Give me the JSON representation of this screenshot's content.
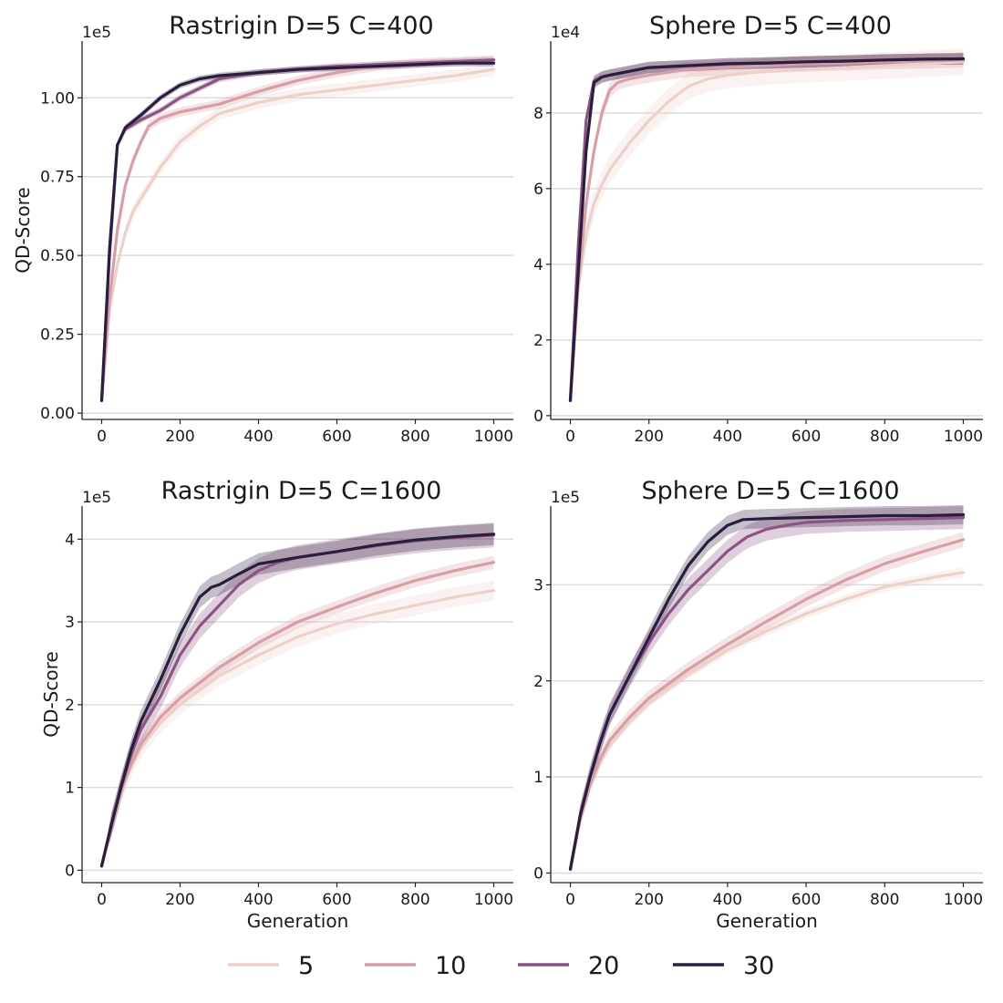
{
  "legend": {
    "entries": [
      {
        "label": "5",
        "color": "#ecd1c9"
      },
      {
        "label": "10",
        "color": "#d69ea7"
      },
      {
        "label": "20",
        "color": "#8c5482"
      },
      {
        "label": "30",
        "color": "#2a1d3d"
      }
    ]
  },
  "chart_data": [
    {
      "type": "line",
      "title": "Rastrigin D=5 C=400",
      "xlabel": "",
      "ylabel": "QD-Score",
      "offset_text": "1e5",
      "xlim": [
        -50,
        1050
      ],
      "ylim": [
        -0.02,
        1.18
      ],
      "xticks": [
        0,
        200,
        400,
        600,
        800,
        1000
      ],
      "xtick_labels": [
        "0",
        "200",
        "400",
        "600",
        "800",
        "1000"
      ],
      "yticks": [
        0,
        0.25,
        0.5,
        0.75,
        1.0
      ],
      "ytick_labels": [
        "0.00",
        "0.25",
        "0.50",
        "0.75",
        "1.00"
      ],
      "grid": "horizontal",
      "series": [
        {
          "name": "5",
          "band": 0.02,
          "x": [
            0,
            20,
            40,
            60,
            80,
            100,
            150,
            200,
            250,
            300,
            400,
            500,
            600,
            700,
            800,
            900,
            1000
          ],
          "y": [
            0.04,
            0.33,
            0.47,
            0.57,
            0.64,
            0.68,
            0.78,
            0.86,
            0.91,
            0.95,
            0.985,
            1.01,
            1.025,
            1.04,
            1.055,
            1.07,
            1.09
          ]
        },
        {
          "name": "10",
          "band": 0.015,
          "x": [
            0,
            20,
            40,
            60,
            80,
            100,
            120,
            150,
            200,
            300,
            400,
            500,
            600,
            700,
            800,
            900,
            1000
          ],
          "y": [
            0.04,
            0.36,
            0.58,
            0.72,
            0.8,
            0.86,
            0.91,
            0.935,
            0.955,
            0.98,
            1.02,
            1.055,
            1.08,
            1.1,
            1.11,
            1.115,
            1.12
          ]
        },
        {
          "name": "20",
          "band": 0.01,
          "x": [
            0,
            20,
            40,
            60,
            80,
            100,
            150,
            200,
            300,
            400,
            500,
            600,
            700,
            800,
            900,
            1000
          ],
          "y": [
            0.04,
            0.5,
            0.85,
            0.9,
            0.915,
            0.93,
            0.96,
            1.0,
            1.06,
            1.08,
            1.09,
            1.1,
            1.105,
            1.11,
            1.115,
            1.12
          ]
        },
        {
          "name": "30",
          "band": 0.01,
          "x": [
            0,
            20,
            40,
            60,
            80,
            100,
            150,
            200,
            250,
            300,
            400,
            500,
            600,
            700,
            800,
            900,
            1000
          ],
          "y": [
            0.04,
            0.52,
            0.85,
            0.905,
            0.925,
            0.945,
            1.0,
            1.04,
            1.06,
            1.07,
            1.08,
            1.09,
            1.095,
            1.1,
            1.105,
            1.11,
            1.11
          ]
        }
      ]
    },
    {
      "type": "line",
      "title": "Sphere D=5 C=400",
      "xlabel": "",
      "ylabel": "",
      "offset_text": "1e4",
      "xlim": [
        -50,
        1050
      ],
      "ylim": [
        -0.1,
        9.9
      ],
      "xticks": [
        0,
        200,
        400,
        600,
        800,
        1000
      ],
      "xtick_labels": [
        "0",
        "200",
        "400",
        "600",
        "800",
        "1000"
      ],
      "yticks": [
        0,
        2,
        4,
        6,
        8
      ],
      "ytick_labels": [
        "0",
        "2",
        "4",
        "6",
        "8"
      ],
      "grid": "horizontal",
      "series": [
        {
          "name": "5",
          "band": 0.35,
          "x": [
            0,
            20,
            40,
            60,
            80,
            100,
            150,
            200,
            250,
            300,
            350,
            400,
            500,
            600,
            700,
            800,
            900,
            1000
          ],
          "y": [
            0.4,
            3.4,
            4.8,
            5.6,
            6.1,
            6.5,
            7.2,
            7.8,
            8.3,
            8.7,
            8.9,
            9.0,
            9.1,
            9.15,
            9.2,
            9.25,
            9.3,
            9.35
          ]
        },
        {
          "name": "10",
          "band": 0.2,
          "x": [
            0,
            20,
            40,
            60,
            80,
            100,
            120,
            150,
            200,
            300,
            400,
            500,
            600,
            700,
            800,
            900,
            1000
          ],
          "y": [
            0.4,
            3.5,
            5.6,
            7.0,
            8.0,
            8.6,
            8.8,
            8.9,
            9.0,
            9.15,
            9.2,
            9.25,
            9.3,
            9.32,
            9.35,
            9.37,
            9.4
          ]
        },
        {
          "name": "20",
          "band": 0.15,
          "x": [
            0,
            20,
            40,
            60,
            80,
            100,
            150,
            200,
            300,
            400,
            500,
            600,
            700,
            800,
            900,
            1000
          ],
          "y": [
            0.4,
            4.5,
            7.8,
            8.85,
            8.95,
            9.0,
            9.1,
            9.2,
            9.25,
            9.3,
            9.32,
            9.35,
            9.37,
            9.4,
            9.42,
            9.43
          ]
        },
        {
          "name": "30",
          "band": 0.15,
          "x": [
            0,
            20,
            40,
            60,
            80,
            100,
            150,
            200,
            300,
            400,
            500,
            600,
            700,
            800,
            900,
            1000
          ],
          "y": [
            0.4,
            3.8,
            7.0,
            8.8,
            8.95,
            9.0,
            9.1,
            9.2,
            9.25,
            9.3,
            9.32,
            9.35,
            9.37,
            9.4,
            9.42,
            9.43
          ]
        }
      ]
    },
    {
      "type": "line",
      "title": "Rastrigin D=5 C=1600",
      "xlabel": "Generation",
      "ylabel": "QD-Score",
      "offset_text": "1e5",
      "xlim": [
        -50,
        1050
      ],
      "ylim": [
        -0.15,
        4.4
      ],
      "xticks": [
        0,
        200,
        400,
        600,
        800,
        1000
      ],
      "xtick_labels": [
        "0",
        "200",
        "400",
        "600",
        "800",
        "1000"
      ],
      "yticks": [
        0,
        1,
        2,
        3,
        4
      ],
      "ytick_labels": [
        "0",
        "1",
        "2",
        "3",
        "4"
      ],
      "grid": "horizontal",
      "series": [
        {
          "name": "5",
          "band": 0.12,
          "x": [
            0,
            25,
            50,
            75,
            100,
            150,
            200,
            300,
            400,
            500,
            600,
            700,
            800,
            900,
            1000
          ],
          "y": [
            0.05,
            0.55,
            0.95,
            1.25,
            1.48,
            1.78,
            2.0,
            2.35,
            2.6,
            2.82,
            2.98,
            3.1,
            3.2,
            3.3,
            3.38
          ]
        },
        {
          "name": "10",
          "band": 0.08,
          "x": [
            0,
            25,
            50,
            75,
            100,
            150,
            200,
            300,
            400,
            500,
            600,
            700,
            800,
            900,
            1000
          ],
          "y": [
            0.05,
            0.55,
            0.97,
            1.28,
            1.52,
            1.85,
            2.08,
            2.45,
            2.75,
            3.0,
            3.18,
            3.35,
            3.5,
            3.62,
            3.72
          ]
        },
        {
          "name": "20",
          "band": 0.15,
          "x": [
            0,
            25,
            50,
            75,
            100,
            150,
            200,
            250,
            300,
            350,
            400,
            450,
            500,
            600,
            700,
            800,
            900,
            1000
          ],
          "y": [
            0.05,
            0.55,
            1.0,
            1.4,
            1.7,
            2.1,
            2.6,
            2.95,
            3.2,
            3.45,
            3.62,
            3.72,
            3.78,
            3.85,
            3.92,
            3.98,
            4.02,
            4.05
          ]
        },
        {
          "name": "30",
          "band": 0.13,
          "x": [
            0,
            25,
            50,
            75,
            100,
            150,
            200,
            250,
            280,
            300,
            350,
            400,
            500,
            600,
            700,
            800,
            900,
            1000
          ],
          "y": [
            0.05,
            0.56,
            1.02,
            1.45,
            1.8,
            2.3,
            2.85,
            3.3,
            3.42,
            3.45,
            3.58,
            3.7,
            3.78,
            3.85,
            3.93,
            3.99,
            4.03,
            4.06
          ]
        }
      ]
    },
    {
      "type": "line",
      "title": "Sphere D=5 C=1600",
      "xlabel": "Generation",
      "ylabel": "",
      "offset_text": "1e5",
      "xlim": [
        -50,
        1050
      ],
      "ylim": [
        -0.1,
        3.82
      ],
      "xticks": [
        0,
        200,
        400,
        600,
        800,
        1000
      ],
      "xtick_labels": [
        "0",
        "200",
        "400",
        "600",
        "800",
        "1000"
      ],
      "yticks": [
        0,
        1,
        2,
        3
      ],
      "ytick_labels": [
        "0",
        "1",
        "2",
        "3"
      ],
      "grid": "horizontal",
      "series": [
        {
          "name": "5",
          "band": 0.05,
          "x": [
            0,
            25,
            50,
            75,
            100,
            150,
            200,
            300,
            400,
            500,
            600,
            700,
            800,
            900,
            1000
          ],
          "y": [
            0.04,
            0.55,
            0.9,
            1.15,
            1.33,
            1.58,
            1.78,
            2.08,
            2.32,
            2.52,
            2.7,
            2.85,
            2.98,
            3.06,
            3.13
          ]
        },
        {
          "name": "10",
          "band": 0.08,
          "x": [
            0,
            25,
            50,
            75,
            100,
            150,
            200,
            300,
            400,
            500,
            600,
            700,
            800,
            900,
            1000
          ],
          "y": [
            0.04,
            0.56,
            0.92,
            1.18,
            1.38,
            1.62,
            1.82,
            2.12,
            2.38,
            2.62,
            2.85,
            3.05,
            3.22,
            3.35,
            3.47
          ]
        },
        {
          "name": "20",
          "band": 0.12,
          "x": [
            0,
            25,
            50,
            75,
            100,
            150,
            200,
            250,
            300,
            350,
            400,
            450,
            500,
            550,
            600,
            700,
            800,
            900,
            1000
          ],
          "y": [
            0.04,
            0.6,
            1.0,
            1.35,
            1.65,
            2.05,
            2.4,
            2.7,
            2.95,
            3.15,
            3.35,
            3.5,
            3.58,
            3.62,
            3.65,
            3.67,
            3.68,
            3.69,
            3.7
          ]
        },
        {
          "name": "30",
          "band": 0.1,
          "x": [
            0,
            25,
            50,
            75,
            100,
            150,
            200,
            250,
            300,
            350,
            400,
            440,
            500,
            600,
            700,
            800,
            900,
            1000
          ],
          "y": [
            0.04,
            0.6,
            1.0,
            1.35,
            1.65,
            2.05,
            2.45,
            2.85,
            3.2,
            3.45,
            3.62,
            3.68,
            3.69,
            3.7,
            3.71,
            3.72,
            3.72,
            3.73
          ]
        }
      ]
    }
  ]
}
